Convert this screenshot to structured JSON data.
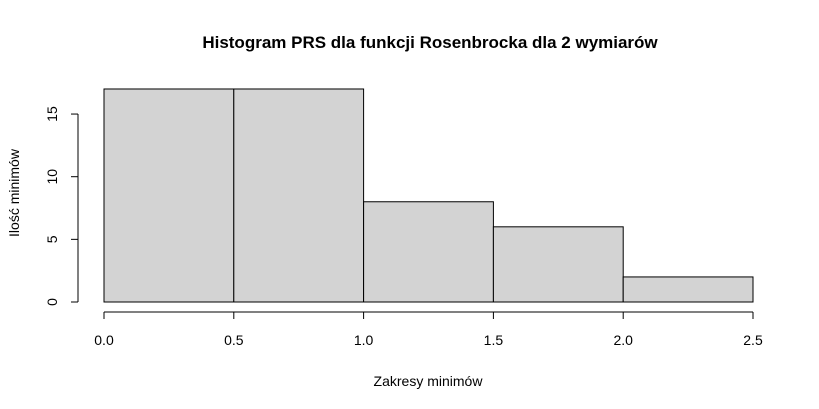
{
  "chart_data": {
    "type": "bar",
    "title": "Histogram PRS dla funkcji Rosenbrocka dla 2 wymiarów",
    "xlabel": "Zakresy minimów",
    "ylabel": "Ilość minimów",
    "bins": [
      {
        "from": 0.0,
        "to": 0.5,
        "count": 17
      },
      {
        "from": 0.5,
        "to": 1.0,
        "count": 17
      },
      {
        "from": 1.0,
        "to": 1.5,
        "count": 8
      },
      {
        "from": 1.5,
        "to": 2.0,
        "count": 6
      },
      {
        "from": 2.0,
        "to": 2.5,
        "count": 2
      }
    ],
    "x_ticks": [
      "0.0",
      "0.5",
      "1.0",
      "1.5",
      "2.0",
      "2.5"
    ],
    "y_ticks": [
      "0",
      "5",
      "10",
      "15"
    ],
    "xlim": [
      0,
      2.5
    ],
    "ylim": [
      0,
      17
    ],
    "bar_color": "#d3d3d3",
    "grid": false,
    "legend": "none"
  }
}
